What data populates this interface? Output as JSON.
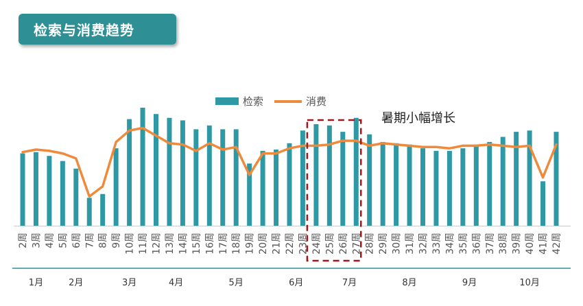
{
  "title": "检索与消费趋势",
  "colors": {
    "bar": "#2e99a5",
    "line": "#ee8a3b",
    "title_bg": "#2e8f95",
    "highlight": "#a0161a",
    "axis": "#2e8f95"
  },
  "chart_data": {
    "type": "bar",
    "categories": [
      "2周",
      "3周",
      "4周",
      "5周",
      "6周",
      "7周",
      "8周",
      "9周",
      "10周",
      "11周",
      "12周",
      "13周",
      "14周",
      "15周",
      "16周",
      "17周",
      "18周",
      "19周",
      "20周",
      "21周",
      "22周",
      "23周",
      "24周",
      "25周",
      "26周",
      "27周",
      "28周",
      "29周",
      "30周",
      "31周",
      "32周",
      "33周",
      "34周",
      "35周",
      "36周",
      "37周",
      "38周",
      "39周",
      "40周",
      "41周",
      "42周"
    ],
    "month_labels": [
      {
        "label": "1月",
        "position": 1
      },
      {
        "label": "2月",
        "position": 4
      },
      {
        "label": "3月",
        "position": 8
      },
      {
        "label": "4月",
        "position": 11.5
      },
      {
        "label": "5月",
        "position": 16
      },
      {
        "label": "6月",
        "position": 20.5
      },
      {
        "label": "7月",
        "position": 24.5
      },
      {
        "label": "8月",
        "position": 29
      },
      {
        "label": "9月",
        "position": 33.5
      },
      {
        "label": "10月",
        "position": 38
      }
    ],
    "series": [
      {
        "name": "检索",
        "type": "bar",
        "values": [
          57,
          58,
          55,
          51,
          45,
          22,
          25,
          61,
          84,
          93,
          88,
          85,
          83,
          76,
          79,
          76,
          76,
          49,
          59,
          60,
          65,
          75,
          80,
          79,
          74,
          85,
          72,
          66,
          65,
          64,
          61,
          59,
          59,
          61,
          64,
          66,
          70,
          74,
          75,
          35,
          74
        ]
      },
      {
        "name": "消费",
        "type": "line",
        "values": [
          58,
          60,
          59,
          57,
          53,
          23,
          31,
          66,
          75,
          77,
          71,
          65,
          64,
          59,
          65,
          60,
          62,
          40,
          57,
          57,
          61,
          63,
          63,
          64,
          67,
          67,
          63,
          65,
          64,
          63,
          62,
          62,
          61,
          63,
          63,
          64,
          63,
          62,
          63,
          38,
          64
        ]
      }
    ],
    "ylim": [
      0,
      100
    ],
    "legend": "top-center",
    "annotation": {
      "text": "暑期小幅增长",
      "range_start": "24周",
      "range_end": "27周"
    }
  }
}
